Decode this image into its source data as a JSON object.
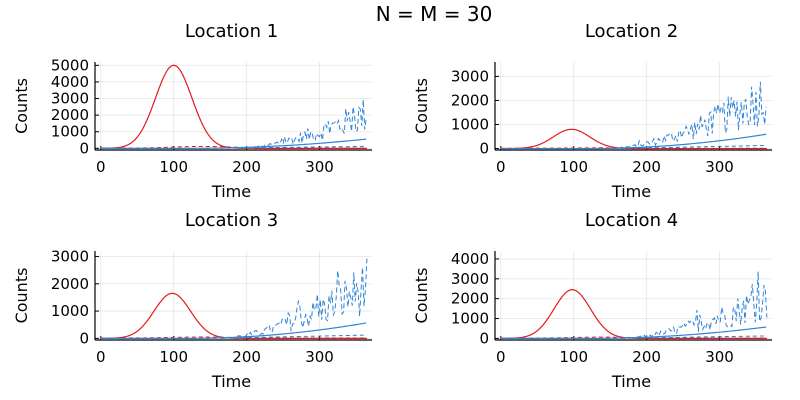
{
  "chart_data": {
    "suptitle": "N = M = 30",
    "type": "line",
    "xlim": [
      -8,
      372
    ],
    "x_ticks": [
      0,
      100,
      200,
      300
    ],
    "x_range": [
      0,
      365
    ],
    "panels": [
      {
        "title": "Location 1",
        "xlabel": "Time",
        "ylabel": "Counts",
        "ylim": [
          -100,
          5200
        ],
        "y_ticks": [
          0,
          1000,
          2000,
          3000,
          4000,
          5000
        ],
        "red_peak": {
          "x": 100,
          "height": 5000,
          "width": 25
        },
        "blue_solid_end": 560,
        "blue_dashed_end": 2100,
        "blue_dashed_start": 190,
        "dashed_low_end": 120
      },
      {
        "title": "Location 2",
        "xlabel": "Time",
        "ylabel": "Counts",
        "ylim": [
          -60,
          3600
        ],
        "y_ticks": [
          0,
          1000,
          2000,
          3000
        ],
        "red_peak": {
          "x": 97,
          "height": 800,
          "width": 25
        },
        "blue_solid_end": 600,
        "blue_dashed_end": 2200,
        "blue_dashed_start": 150,
        "dashed_low_end": 130
      },
      {
        "title": "Location 3",
        "xlabel": "Time",
        "ylabel": "Counts",
        "ylim": [
          -60,
          3200
        ],
        "y_ticks": [
          0,
          1000,
          2000,
          3000
        ],
        "red_peak": {
          "x": 98,
          "height": 1650,
          "width": 25
        },
        "blue_solid_end": 570,
        "blue_dashed_end": 1900,
        "blue_dashed_start": 165,
        "dashed_low_end": 120
      },
      {
        "title": "Location 4",
        "xlabel": "Time",
        "ylabel": "Counts",
        "ylim": [
          -80,
          4400
        ],
        "y_ticks": [
          0,
          1000,
          2000,
          3000,
          4000
        ],
        "red_peak": {
          "x": 98,
          "height": 2450,
          "width": 25
        },
        "blue_solid_end": 580,
        "blue_dashed_end": 2000,
        "blue_dashed_start": 165,
        "dashed_low_end": 125
      }
    ],
    "colors": {
      "red": "#e31a1c",
      "blue": "#2f84d6"
    }
  }
}
